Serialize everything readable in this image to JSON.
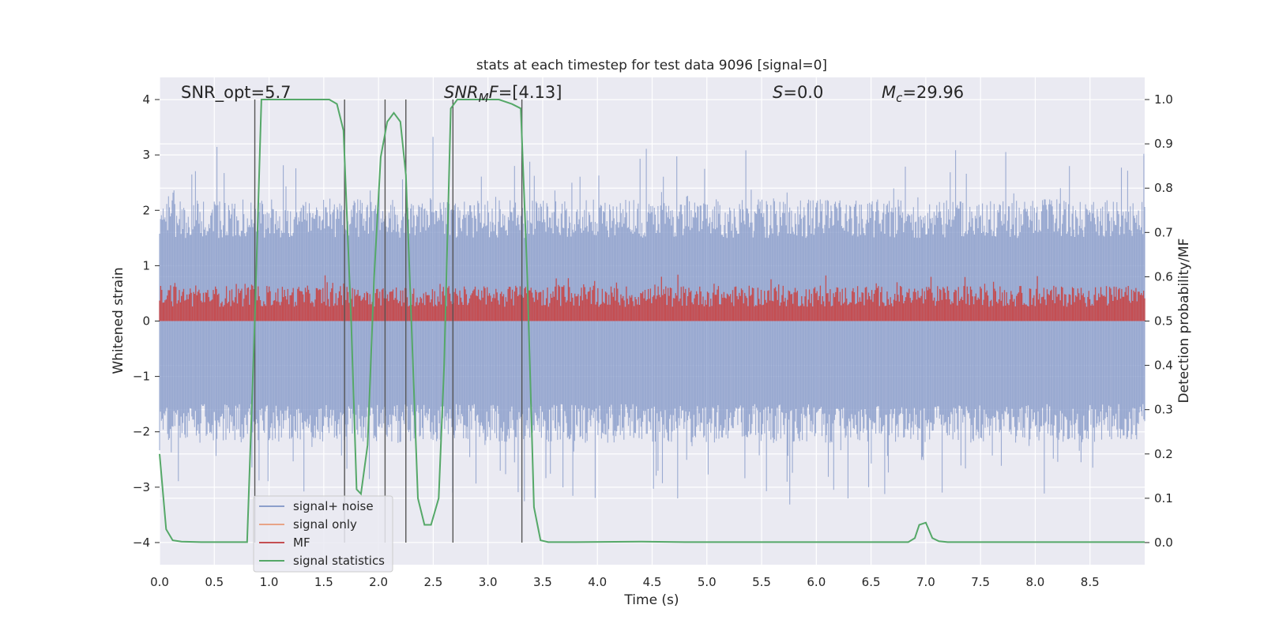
{
  "chart_data": {
    "type": "line",
    "title": "stats at each timestep for test data 9096 [signal=0]",
    "xlabel": "Time (s)",
    "ylabel": "Whitened strain",
    "y2label": "Detection probability/MF",
    "xlim": [
      0,
      9
    ],
    "ylim": [
      -4.4,
      4.4
    ],
    "y2lim": [
      -0.05,
      1.05
    ],
    "x_ticks": [
      "0.0",
      "0.5",
      "1.0",
      "1.5",
      "2.0",
      "2.5",
      "3.0",
      "3.5",
      "4.0",
      "4.5",
      "5.0",
      "5.5",
      "6.0",
      "6.5",
      "7.0",
      "7.5",
      "8.0",
      "8.5"
    ],
    "y_ticks": [
      "4",
      "3",
      "2",
      "1",
      "0",
      "−1",
      "−2",
      "−3",
      "−4"
    ],
    "y2_ticks": [
      "1.0",
      "0.9",
      "0.8",
      "0.7",
      "0.6",
      "0.5",
      "0.4",
      "0.3",
      "0.2",
      "0.1",
      "0.0"
    ],
    "grid": true,
    "legend_position": "lower-left",
    "annotations": {
      "snr_opt": "SNR_opt=5.7",
      "snr_mf_label": "SNR",
      "snr_mf_sub": "M",
      "snr_mf_post": "F",
      "snr_mf_value": "=[4.13]",
      "s_label": "S",
      "s_value": "=0.0",
      "mc_label": "M",
      "mc_sub": "c",
      "mc_value": "=29.96"
    },
    "vertical_lines_x": [
      0.87,
      1.69,
      2.06,
      2.25,
      2.68,
      3.31
    ],
    "series": [
      {
        "name": "signal+ noise",
        "color": "#8c9fcb",
        "axis": "left",
        "envelope": {
          "typical_upper": 2.0,
          "typical_lower": -2.0,
          "max": 4.0,
          "min": -4.0
        }
      },
      {
        "name": "signal only",
        "color": "#e8a487",
        "axis": "left",
        "values_note": ""
      },
      {
        "name": "MF",
        "color": "#c44e52",
        "axis": "right",
        "band": {
          "lower": 0.5,
          "typical_upper": 0.58,
          "max": 0.62
        }
      },
      {
        "name": "signal statistics",
        "color": "#55a868",
        "axis": "right",
        "x": [
          0.0,
          0.06,
          0.12,
          0.2,
          0.4,
          0.6,
          0.8,
          0.87,
          0.93,
          1.0,
          1.3,
          1.55,
          1.62,
          1.68,
          1.75,
          1.8,
          1.84,
          1.9,
          1.96,
          2.02,
          2.08,
          2.14,
          2.2,
          2.25,
          2.3,
          2.36,
          2.42,
          2.48,
          2.55,
          2.6,
          2.66,
          2.72,
          2.78,
          2.9,
          3.1,
          3.22,
          3.3,
          3.36,
          3.42,
          3.48,
          3.55,
          3.62,
          3.8,
          4.4,
          4.8,
          5.5,
          6.0,
          6.5,
          6.84,
          6.9,
          6.94,
          7.0,
          7.06,
          7.12,
          7.2,
          7.5,
          8.0,
          8.5,
          9.0
        ],
        "values": [
          0.2,
          0.03,
          0.005,
          0.002,
          0.001,
          0.001,
          0.001,
          0.5,
          1.0,
          1.0,
          1.0,
          1.0,
          0.99,
          0.93,
          0.5,
          0.12,
          0.11,
          0.22,
          0.6,
          0.87,
          0.95,
          0.97,
          0.95,
          0.83,
          0.5,
          0.1,
          0.04,
          0.04,
          0.1,
          0.4,
          0.98,
          1.0,
          1.0,
          1.0,
          1.0,
          0.99,
          0.98,
          0.6,
          0.08,
          0.005,
          0.001,
          0.001,
          0.001,
          0.002,
          0.001,
          0.001,
          0.001,
          0.001,
          0.001,
          0.01,
          0.04,
          0.045,
          0.01,
          0.003,
          0.001,
          0.001,
          0.001,
          0.001,
          0.001
        ]
      }
    ]
  }
}
